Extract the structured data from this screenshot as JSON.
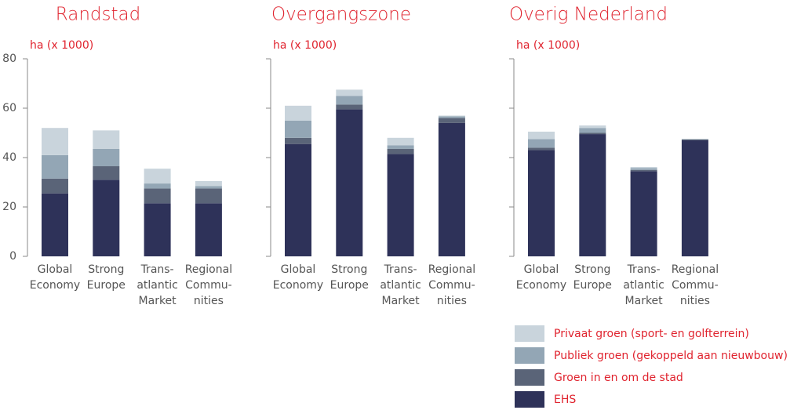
{
  "chart_data": [
    {
      "type": "stacked-bar",
      "title": "Randstad",
      "ylabel": "ha (x 1000)",
      "categories": [
        [
          "Global",
          "Economy"
        ],
        [
          "Strong",
          "Europe"
        ],
        [
          "Trans-",
          "atlantic",
          "Market"
        ],
        [
          "Regional",
          "Commu-",
          "nities"
        ]
      ],
      "ylim": [
        0,
        80
      ],
      "yticks": [
        0,
        20,
        40,
        60,
        80
      ],
      "series": [
        {
          "name": "EHS",
          "color": "#2e3259",
          "values": [
            25.5,
            31,
            21.5,
            21.5
          ]
        },
        {
          "name": "Groen in en om de stad",
          "color": "#5a6478",
          "values": [
            6,
            5.5,
            6,
            6
          ]
        },
        {
          "name": "Publiek groen (gekoppeld aan nieuwbouw)",
          "color": "#93a6b5",
          "values": [
            9.5,
            7,
            2,
            1
          ]
        },
        {
          "name": "Privaat groen (sport- en golfterrein)",
          "color": "#c9d4dc",
          "values": [
            11,
            7.5,
            6,
            2
          ]
        }
      ]
    },
    {
      "type": "stacked-bar",
      "title": "Overgangszone",
      "ylabel": "ha (x 1000)",
      "categories": [
        [
          "Global",
          "Economy"
        ],
        [
          "Strong",
          "Europe"
        ],
        [
          "Trans-",
          "atlantic",
          "Market"
        ],
        [
          "Regional",
          "Commu-",
          "nities"
        ]
      ],
      "ylim": [
        0,
        80
      ],
      "yticks": [
        0,
        20,
        40,
        60,
        80
      ],
      "series": [
        {
          "name": "EHS",
          "color": "#2e3259",
          "values": [
            45.5,
            59.5,
            41.5,
            54
          ]
        },
        {
          "name": "Groen in en om de stad",
          "color": "#5a6478",
          "values": [
            2.5,
            2,
            2,
            2
          ]
        },
        {
          "name": "Publiek groen (gekoppeld aan nieuwbouw)",
          "color": "#93a6b5",
          "values": [
            7,
            3.5,
            1.5,
            0.7
          ]
        },
        {
          "name": "Privaat groen (sport- en golfterrein)",
          "color": "#c9d4dc",
          "values": [
            6,
            2.5,
            3,
            0.3
          ]
        }
      ]
    },
    {
      "type": "stacked-bar",
      "title": "Overig Nederland",
      "ylabel": "ha (x 1000)",
      "categories": [
        [
          "Global",
          "Economy"
        ],
        [
          "Strong",
          "Europe"
        ],
        [
          "Trans-",
          "atlantic",
          "Market"
        ],
        [
          "Regional",
          "Commu-",
          "nities"
        ]
      ],
      "ylim": [
        0,
        80
      ],
      "yticks": [
        0,
        20,
        40,
        60,
        80
      ],
      "series": [
        {
          "name": "EHS",
          "color": "#2e3259",
          "values": [
            43,
            49.5,
            34.5,
            47
          ]
        },
        {
          "name": "Groen in en om de stad",
          "color": "#5a6478",
          "values": [
            1,
            0.5,
            0.5,
            0.3
          ]
        },
        {
          "name": "Publiek groen (gekoppeld aan nieuwbouw)",
          "color": "#93a6b5",
          "values": [
            3.5,
            2,
            0.7,
            0.2
          ]
        },
        {
          "name": "Privaat groen (sport- en golfterrein)",
          "color": "#c9d4dc",
          "values": [
            3,
            1,
            0.5,
            0
          ]
        }
      ]
    }
  ]
}
